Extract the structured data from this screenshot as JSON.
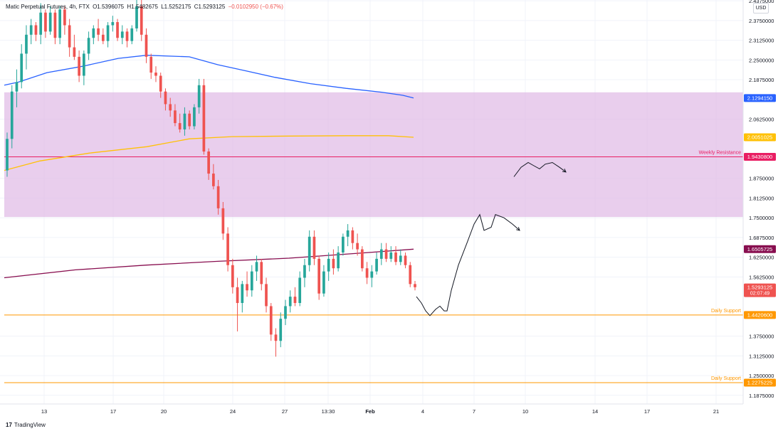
{
  "header": {
    "symbol": "Matic Perpetual Futures, 4h, FTX",
    "o_label": "O",
    "o_value": "1.5396075",
    "h_label": "H",
    "h_value": "1.5482675",
    "l_label": "L",
    "l_value": "1.5252175",
    "c_label": "C",
    "c_value": "1.5293125",
    "change": "−0.0102950 (−0.67%)"
  },
  "currency": "USD",
  "footer": {
    "logo_text": "TradingView"
  },
  "chart_data": {
    "type": "candlestick",
    "y_scale": "linear",
    "ylim": [
      1.175,
      2.4375
    ],
    "y_ticks": [
      "2.4375000",
      "2.3750000",
      "2.3125000",
      "2.2500000",
      "2.1875000",
      "2.0625000",
      "1.8750000",
      "1.8125000",
      "1.7500000",
      "1.6875000",
      "1.6250000",
      "1.5625000",
      "1.3750000",
      "1.3125000",
      "1.2500000",
      "1.1875000"
    ],
    "x_ticks": [
      "13",
      "17",
      "20",
      "24",
      "27",
      "13:30",
      "Feb",
      "4",
      "7",
      "10",
      "14",
      "17",
      "21"
    ],
    "price_labels": [
      {
        "text": "2.1294150",
        "value": 2.129415,
        "color": "#2962ff"
      },
      {
        "text": "2.0051025",
        "value": 2.0051025,
        "color": "#ffc107"
      },
      {
        "text": "1.9430800",
        "value": 1.94308,
        "color": "#e91e63"
      },
      {
        "text": "1.6505725",
        "value": 1.6505725,
        "color": "#880e4f"
      },
      {
        "text": "1.5293125",
        "value": 1.5293125,
        "color": "#ef5350",
        "sub": "02:07:49"
      },
      {
        "text": "1.4420600",
        "value": 1.44206,
        "color": "#ff9800"
      },
      {
        "text": "1.2275225",
        "value": 1.2275225,
        "color": "#ff9800"
      }
    ],
    "zone": {
      "low": 1.7525,
      "high": 2.1475,
      "color": "#e1bee7"
    },
    "levels": [
      {
        "name": "Weekly Resistance",
        "value": 1.94308,
        "color": "#e91e63"
      },
      {
        "name": "Daily Support",
        "value": 1.44206,
        "color": "#ff9800"
      },
      {
        "name": "Daily Support",
        "value": 1.2275225,
        "color": "#ff9800"
      }
    ],
    "moving_averages": [
      {
        "color": "#2962ff",
        "points": [
          [
            0,
            2.17
          ],
          [
            20,
            2.18
          ],
          [
            60,
            2.21
          ],
          [
            110,
            2.23
          ],
          [
            160,
            2.255
          ],
          [
            200,
            2.265
          ],
          [
            260,
            2.26
          ],
          [
            300,
            2.235
          ],
          [
            340,
            2.215
          ],
          [
            380,
            2.195
          ],
          [
            430,
            2.175
          ],
          [
            480,
            2.16
          ],
          [
            530,
            2.148
          ],
          [
            560,
            2.138
          ],
          [
            575,
            2.129415
          ]
        ]
      },
      {
        "color": "#ffc107",
        "points": [
          [
            0,
            1.9
          ],
          [
            50,
            1.93
          ],
          [
            120,
            1.955
          ],
          [
            200,
            1.975
          ],
          [
            260,
            2.0
          ],
          [
            320,
            2.007
          ],
          [
            400,
            2.009
          ],
          [
            480,
            2.01
          ],
          [
            540,
            2.01
          ],
          [
            575,
            2.0051025
          ]
        ]
      },
      {
        "color": "#880e4f",
        "points": [
          [
            0,
            1.56
          ],
          [
            100,
            1.585
          ],
          [
            200,
            1.6
          ],
          [
            300,
            1.612
          ],
          [
            400,
            1.622
          ],
          [
            500,
            1.638
          ],
          [
            575,
            1.6505725
          ]
        ]
      }
    ],
    "projections": [
      {
        "color": "#131722",
        "points": [
          [
            585,
            1.5
          ],
          [
            592,
            1.48
          ],
          [
            598,
            1.455
          ],
          [
            604,
            1.44
          ],
          [
            612,
            1.46
          ],
          [
            618,
            1.47
          ],
          [
            624,
            1.455
          ],
          [
            628,
            1.455
          ],
          [
            634,
            1.52
          ],
          [
            644,
            1.6
          ],
          [
            656,
            1.67
          ],
          [
            666,
            1.73
          ],
          [
            674,
            1.76
          ],
          [
            680,
            1.71
          ],
          [
            690,
            1.72
          ],
          [
            696,
            1.76
          ],
          [
            708,
            1.75
          ],
          [
            720,
            1.73
          ],
          [
            730,
            1.71
          ]
        ]
      },
      {
        "color": "#131722",
        "points": [
          [
            722,
            1.88
          ],
          [
            732,
            1.91
          ],
          [
            742,
            1.925
          ],
          [
            750,
            1.915
          ],
          [
            758,
            1.905
          ],
          [
            766,
            1.92
          ],
          [
            776,
            1.925
          ],
          [
            786,
            1.91
          ],
          [
            795,
            1.895
          ]
        ]
      }
    ],
    "candles": [
      [
        1.9,
        2.02,
        1.88,
        2.0
      ],
      [
        2.0,
        2.17,
        1.97,
        2.15
      ],
      [
        2.15,
        2.22,
        2.1,
        2.18
      ],
      [
        2.18,
        2.3,
        2.16,
        2.27
      ],
      [
        2.27,
        2.36,
        2.22,
        2.33
      ],
      [
        2.33,
        2.38,
        2.3,
        2.36
      ],
      [
        2.36,
        2.37,
        2.31,
        2.33
      ],
      [
        2.33,
        2.43,
        2.3,
        2.4
      ],
      [
        2.4,
        2.41,
        2.32,
        2.34
      ],
      [
        2.34,
        2.42,
        2.33,
        2.4
      ],
      [
        2.4,
        2.41,
        2.3,
        2.32
      ],
      [
        2.32,
        2.42,
        2.3,
        2.41
      ],
      [
        2.41,
        2.42,
        2.33,
        2.36
      ],
      [
        2.36,
        2.38,
        2.26,
        2.29
      ],
      [
        2.29,
        2.33,
        2.25,
        2.26
      ],
      [
        2.26,
        2.28,
        2.18,
        2.2
      ],
      [
        2.2,
        2.28,
        2.17,
        2.27
      ],
      [
        2.27,
        2.34,
        2.25,
        2.32
      ],
      [
        2.32,
        2.36,
        2.3,
        2.35
      ],
      [
        2.35,
        2.38,
        2.31,
        2.33
      ],
      [
        2.33,
        2.35,
        2.3,
        2.31
      ],
      [
        2.31,
        2.37,
        2.29,
        2.36
      ],
      [
        2.36,
        2.39,
        2.34,
        2.37
      ],
      [
        2.37,
        2.38,
        2.31,
        2.32
      ],
      [
        2.32,
        2.36,
        2.3,
        2.34
      ],
      [
        2.34,
        2.35,
        2.29,
        2.31
      ],
      [
        2.31,
        2.36,
        2.3,
        2.35
      ],
      [
        2.35,
        2.44,
        2.34,
        2.42
      ],
      [
        2.42,
        2.44,
        2.31,
        2.33
      ],
      [
        2.33,
        2.35,
        2.24,
        2.26
      ],
      [
        2.26,
        2.27,
        2.19,
        2.21
      ],
      [
        2.21,
        2.23,
        2.18,
        2.2
      ],
      [
        2.2,
        2.21,
        2.13,
        2.15
      ],
      [
        2.15,
        2.16,
        2.09,
        2.11
      ],
      [
        2.11,
        2.13,
        2.07,
        2.09
      ],
      [
        2.09,
        2.11,
        2.04,
        2.05
      ],
      [
        2.05,
        2.08,
        2.02,
        2.03
      ],
      [
        2.03,
        2.1,
        2.01,
        2.08
      ],
      [
        2.08,
        2.09,
        2.03,
        2.04
      ],
      [
        2.04,
        2.11,
        2.03,
        2.1
      ],
      [
        2.1,
        2.19,
        2.08,
        2.17
      ],
      [
        2.17,
        2.19,
        1.95,
        1.96
      ],
      [
        1.96,
        1.97,
        1.87,
        1.89
      ],
      [
        1.89,
        1.92,
        1.84,
        1.85
      ],
      [
        1.85,
        1.87,
        1.76,
        1.78
      ],
      [
        1.78,
        1.8,
        1.68,
        1.7
      ],
      [
        1.7,
        1.72,
        1.58,
        1.6
      ],
      [
        1.6,
        1.62,
        1.51,
        1.53
      ],
      [
        1.53,
        1.56,
        1.39,
        1.48
      ],
      [
        1.48,
        1.55,
        1.45,
        1.54
      ],
      [
        1.54,
        1.58,
        1.5,
        1.52
      ],
      [
        1.52,
        1.6,
        1.5,
        1.58
      ],
      [
        1.58,
        1.63,
        1.55,
        1.61
      ],
      [
        1.61,
        1.62,
        1.52,
        1.54
      ],
      [
        1.54,
        1.56,
        1.45,
        1.47
      ],
      [
        1.47,
        1.48,
        1.36,
        1.38
      ],
      [
        1.38,
        1.4,
        1.31,
        1.36
      ],
      [
        1.36,
        1.45,
        1.34,
        1.43
      ],
      [
        1.43,
        1.49,
        1.41,
        1.47
      ],
      [
        1.47,
        1.52,
        1.45,
        1.5
      ],
      [
        1.5,
        1.53,
        1.47,
        1.48
      ],
      [
        1.48,
        1.58,
        1.47,
        1.56
      ],
      [
        1.56,
        1.62,
        1.53,
        1.6
      ],
      [
        1.6,
        1.71,
        1.58,
        1.69
      ],
      [
        1.69,
        1.71,
        1.6,
        1.62
      ],
      [
        1.62,
        1.63,
        1.49,
        1.51
      ],
      [
        1.51,
        1.6,
        1.5,
        1.58
      ],
      [
        1.58,
        1.64,
        1.55,
        1.62
      ],
      [
        1.62,
        1.65,
        1.57,
        1.59
      ],
      [
        1.59,
        1.66,
        1.58,
        1.64
      ],
      [
        1.64,
        1.7,
        1.63,
        1.69
      ],
      [
        1.69,
        1.73,
        1.66,
        1.71
      ],
      [
        1.71,
        1.72,
        1.65,
        1.67
      ],
      [
        1.67,
        1.7,
        1.63,
        1.65
      ],
      [
        1.65,
        1.66,
        1.58,
        1.59
      ],
      [
        1.59,
        1.61,
        1.54,
        1.56
      ],
      [
        1.56,
        1.6,
        1.53,
        1.58
      ],
      [
        1.58,
        1.64,
        1.57,
        1.62
      ],
      [
        1.62,
        1.67,
        1.6,
        1.65
      ],
      [
        1.65,
        1.67,
        1.61,
        1.62
      ],
      [
        1.62,
        1.66,
        1.61,
        1.64
      ],
      [
        1.64,
        1.66,
        1.6,
        1.61
      ],
      [
        1.61,
        1.65,
        1.6,
        1.63
      ],
      [
        1.63,
        1.64,
        1.59,
        1.6
      ],
      [
        1.6,
        1.61,
        1.53,
        1.54
      ],
      [
        1.54,
        1.55,
        1.52,
        1.53
      ]
    ]
  }
}
